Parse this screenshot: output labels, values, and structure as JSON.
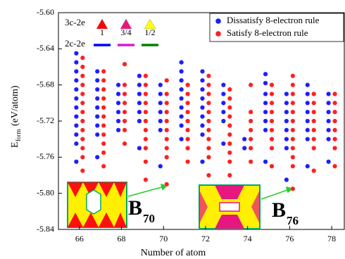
{
  "chart_data": {
    "type": "scatter",
    "xlabel": "Number of atom",
    "ylabel_main": "E",
    "ylabel_sub": "form",
    "ylabel_unit": "(eV/atom)",
    "xlim": [
      65.0,
      78.6
    ],
    "ylim": [
      -5.84,
      -5.6
    ],
    "xticks": [
      66,
      68,
      70,
      72,
      74,
      76,
      78
    ],
    "yticks": [
      {
        "value": -5.6,
        "label": "-5.60"
      },
      -5.64,
      -5.68,
      -5.72,
      -5.76,
      {
        "value": -5.8,
        "label": "-5.80"
      },
      -5.84
    ],
    "legend_position": "upper right",
    "series": [
      {
        "name": "Dissatisfy 8-electron rule",
        "color": "#1e1eff",
        "x": [
          65.85,
          65.85,
          65.85,
          65.85,
          65.85,
          65.85,
          65.85,
          65.85,
          65.85,
          65.85,
          65.85,
          65.85,
          66.85,
          66.85,
          66.85,
          66.85,
          66.85,
          66.85,
          66.85,
          66.85,
          66.85,
          67.85,
          67.85,
          67.85,
          67.85,
          67.85,
          67.85,
          68.85,
          68.85,
          68.85,
          68.85,
          68.85,
          68.85,
          68.85,
          69.85,
          69.85,
          69.85,
          69.85,
          69.85,
          69.85,
          69.85,
          70.85,
          70.85,
          70.85,
          70.85,
          70.85,
          70.85,
          70.85,
          70.85,
          70.85,
          71.85,
          71.85,
          71.85,
          71.85,
          71.85,
          71.85,
          71.85,
          71.85,
          71.85,
          72.85,
          72.85,
          72.85,
          72.85,
          72.85,
          72.85,
          73.85,
          73.85,
          74.85,
          74.85,
          74.85,
          74.85,
          74.85,
          74.85,
          74.85,
          74.85,
          75.85,
          75.85,
          75.85,
          75.85,
          75.85,
          75.85,
          75.85,
          75.85,
          76.85,
          76.85,
          76.85,
          76.85,
          76.85,
          76.85,
          76.85,
          76.85,
          77.85,
          77.85,
          77.85,
          77.85,
          77.85,
          77.85,
          77.85
        ],
        "values": [
          -5.645,
          -5.655,
          -5.665,
          -5.675,
          -5.685,
          -5.695,
          -5.705,
          -5.715,
          -5.725,
          -5.735,
          -5.745,
          -5.765,
          -5.665,
          -5.675,
          -5.685,
          -5.695,
          -5.705,
          -5.715,
          -5.725,
          -5.735,
          -5.76,
          -5.68,
          -5.69,
          -5.7,
          -5.71,
          -5.72,
          -5.73,
          -5.67,
          -5.68,
          -5.69,
          -5.7,
          -5.71,
          -5.72,
          -5.75,
          -5.68,
          -5.69,
          -5.7,
          -5.71,
          -5.72,
          -5.73,
          -5.77,
          -5.655,
          -5.665,
          -5.675,
          -5.685,
          -5.695,
          -5.705,
          -5.715,
          -5.725,
          -5.74,
          -5.665,
          -5.675,
          -5.685,
          -5.695,
          -5.705,
          -5.715,
          -5.725,
          -5.735,
          -5.765,
          -5.68,
          -5.69,
          -5.7,
          -5.71,
          -5.72,
          -5.745,
          -5.74,
          -5.75,
          -5.668,
          -5.678,
          -5.69,
          -5.7,
          -5.71,
          -5.72,
          -5.73,
          -5.765,
          -5.69,
          -5.7,
          -5.71,
          -5.72,
          -5.73,
          -5.74,
          -5.75,
          -5.785,
          -5.68,
          -5.69,
          -5.7,
          -5.71,
          -5.72,
          -5.73,
          -5.74,
          -5.77,
          -5.69,
          -5.7,
          -5.71,
          -5.72,
          -5.73,
          -5.74,
          -5.765
        ]
      },
      {
        "name": "Satisfy 8-electron rule",
        "color": "#ff2020",
        "x": [
          66.15,
          66.15,
          66.15,
          66.15,
          66.15,
          66.15,
          66.15,
          66.15,
          66.15,
          66.15,
          66.15,
          66.15,
          66.15,
          67.15,
          67.15,
          67.15,
          67.15,
          67.15,
          67.15,
          67.15,
          67.15,
          67.15,
          67.15,
          67.15,
          68.15,
          68.15,
          68.15,
          68.15,
          68.15,
          68.15,
          68.15,
          68.15,
          69.15,
          69.15,
          69.15,
          69.15,
          69.15,
          69.15,
          69.15,
          69.15,
          69.15,
          69.15,
          69.15,
          70.15,
          70.15,
          70.15,
          70.15,
          70.15,
          70.15,
          70.15,
          70.15,
          70.15,
          70.15,
          71.15,
          71.15,
          71.15,
          71.15,
          71.15,
          71.15,
          71.15,
          71.15,
          71.15,
          72.15,
          72.15,
          72.15,
          72.15,
          72.15,
          72.15,
          72.15,
          72.15,
          72.15,
          72.15,
          72.15,
          73.15,
          73.15,
          73.15,
          73.15,
          73.15,
          73.15,
          73.15,
          73.15,
          73.15,
          73.15,
          74.15,
          74.15,
          74.15,
          74.15,
          74.15,
          74.15,
          74.15,
          75.15,
          75.15,
          75.15,
          75.15,
          75.15,
          75.15,
          75.15,
          75.15,
          75.15,
          76.15,
          76.15,
          76.15,
          76.15,
          76.15,
          76.15,
          76.15,
          76.15,
          76.15,
          76.15,
          76.15,
          76.15,
          77.15,
          77.15,
          77.15,
          77.15,
          77.15,
          77.15,
          77.15,
          77.15,
          78.15,
          78.15,
          78.15,
          78.15,
          78.15,
          78.15,
          78.15,
          78.15
        ],
        "values": [
          -5.65,
          -5.66,
          -5.67,
          -5.68,
          -5.69,
          -5.7,
          -5.71,
          -5.72,
          -5.73,
          -5.74,
          -5.75,
          -5.76,
          -5.775,
          -5.665,
          -5.675,
          -5.685,
          -5.695,
          -5.705,
          -5.715,
          -5.725,
          -5.735,
          -5.745,
          -5.755,
          -5.77,
          -5.657,
          -5.68,
          -5.69,
          -5.7,
          -5.71,
          -5.72,
          -5.73,
          -5.745,
          -5.67,
          -5.68,
          -5.69,
          -5.7,
          -5.71,
          -5.72,
          -5.73,
          -5.74,
          -5.75,
          -5.765,
          -5.785,
          -5.675,
          -5.69,
          -5.7,
          -5.71,
          -5.72,
          -5.73,
          -5.74,
          -5.75,
          -5.76,
          -5.79,
          -5.68,
          -5.69,
          -5.7,
          -5.71,
          -5.72,
          -5.73,
          -5.74,
          -5.75,
          -5.765,
          -5.67,
          -5.68,
          -5.69,
          -5.7,
          -5.71,
          -5.72,
          -5.73,
          -5.74,
          -5.75,
          -5.76,
          -5.78,
          -5.685,
          -5.695,
          -5.705,
          -5.715,
          -5.725,
          -5.735,
          -5.745,
          -5.755,
          -5.765,
          -5.78,
          -5.68,
          -5.71,
          -5.72,
          -5.73,
          -5.74,
          -5.75,
          -5.765,
          -5.68,
          -5.69,
          -5.7,
          -5.71,
          -5.72,
          -5.73,
          -5.74,
          -5.75,
          -5.77,
          -5.67,
          -5.68,
          -5.69,
          -5.7,
          -5.71,
          -5.72,
          -5.73,
          -5.74,
          -5.75,
          -5.76,
          -5.77,
          -5.795,
          -5.69,
          -5.7,
          -5.71,
          -5.72,
          -5.73,
          -5.74,
          -5.75,
          -5.775,
          -5.69,
          -5.7,
          -5.71,
          -5.72,
          -5.73,
          -5.74,
          -5.75,
          -5.77
        ]
      }
    ],
    "bond_legend": {
      "three_center": "3c-2e",
      "two_center": "2c-2e",
      "fractions": [
        "1",
        "3/4",
        "1/2"
      ],
      "triangle_colors": [
        "#ff0000",
        "#e8167f",
        "#ffff00"
      ],
      "line_colors": [
        "#0000ff",
        "#d21fd2",
        "#008000"
      ]
    },
    "annotations": [
      {
        "text": "B",
        "sub": "70"
      },
      {
        "text": "B",
        "sub": "76"
      }
    ]
  }
}
